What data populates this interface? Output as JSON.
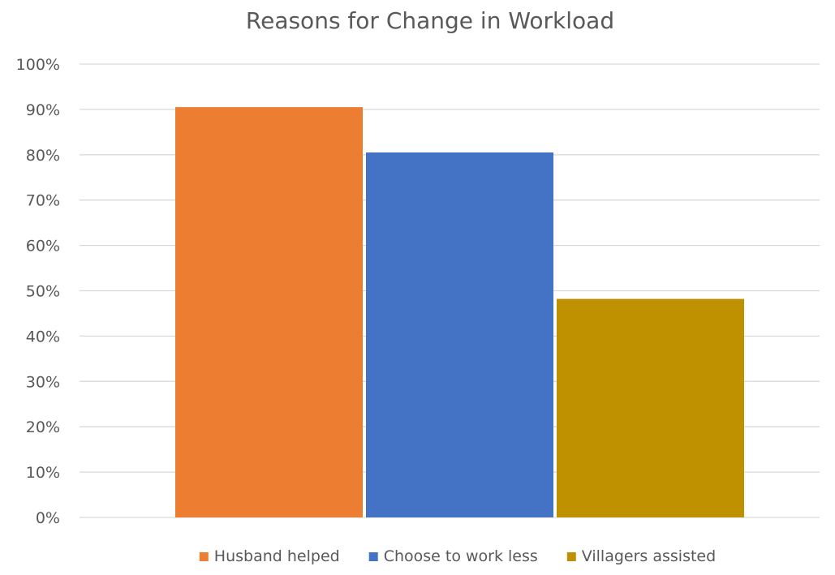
{
  "chart_data": {
    "type": "bar",
    "title": "Reasons for Change in Workload",
    "xlabel": "",
    "ylabel": "",
    "y_unit": "%",
    "ylim": [
      0,
      100
    ],
    "y_tick_step": 10,
    "grid": true,
    "legend_position": "bottom",
    "categories": [
      ""
    ],
    "series": [
      {
        "name": "Husband helped",
        "values": [
          90.5
        ],
        "color": "#ED7D31"
      },
      {
        "name": "Choose to work less",
        "values": [
          80.5
        ],
        "color": "#4472C4"
      },
      {
        "name": "Villagers assisted",
        "values": [
          48.2
        ],
        "color": "#BF9000"
      }
    ]
  }
}
